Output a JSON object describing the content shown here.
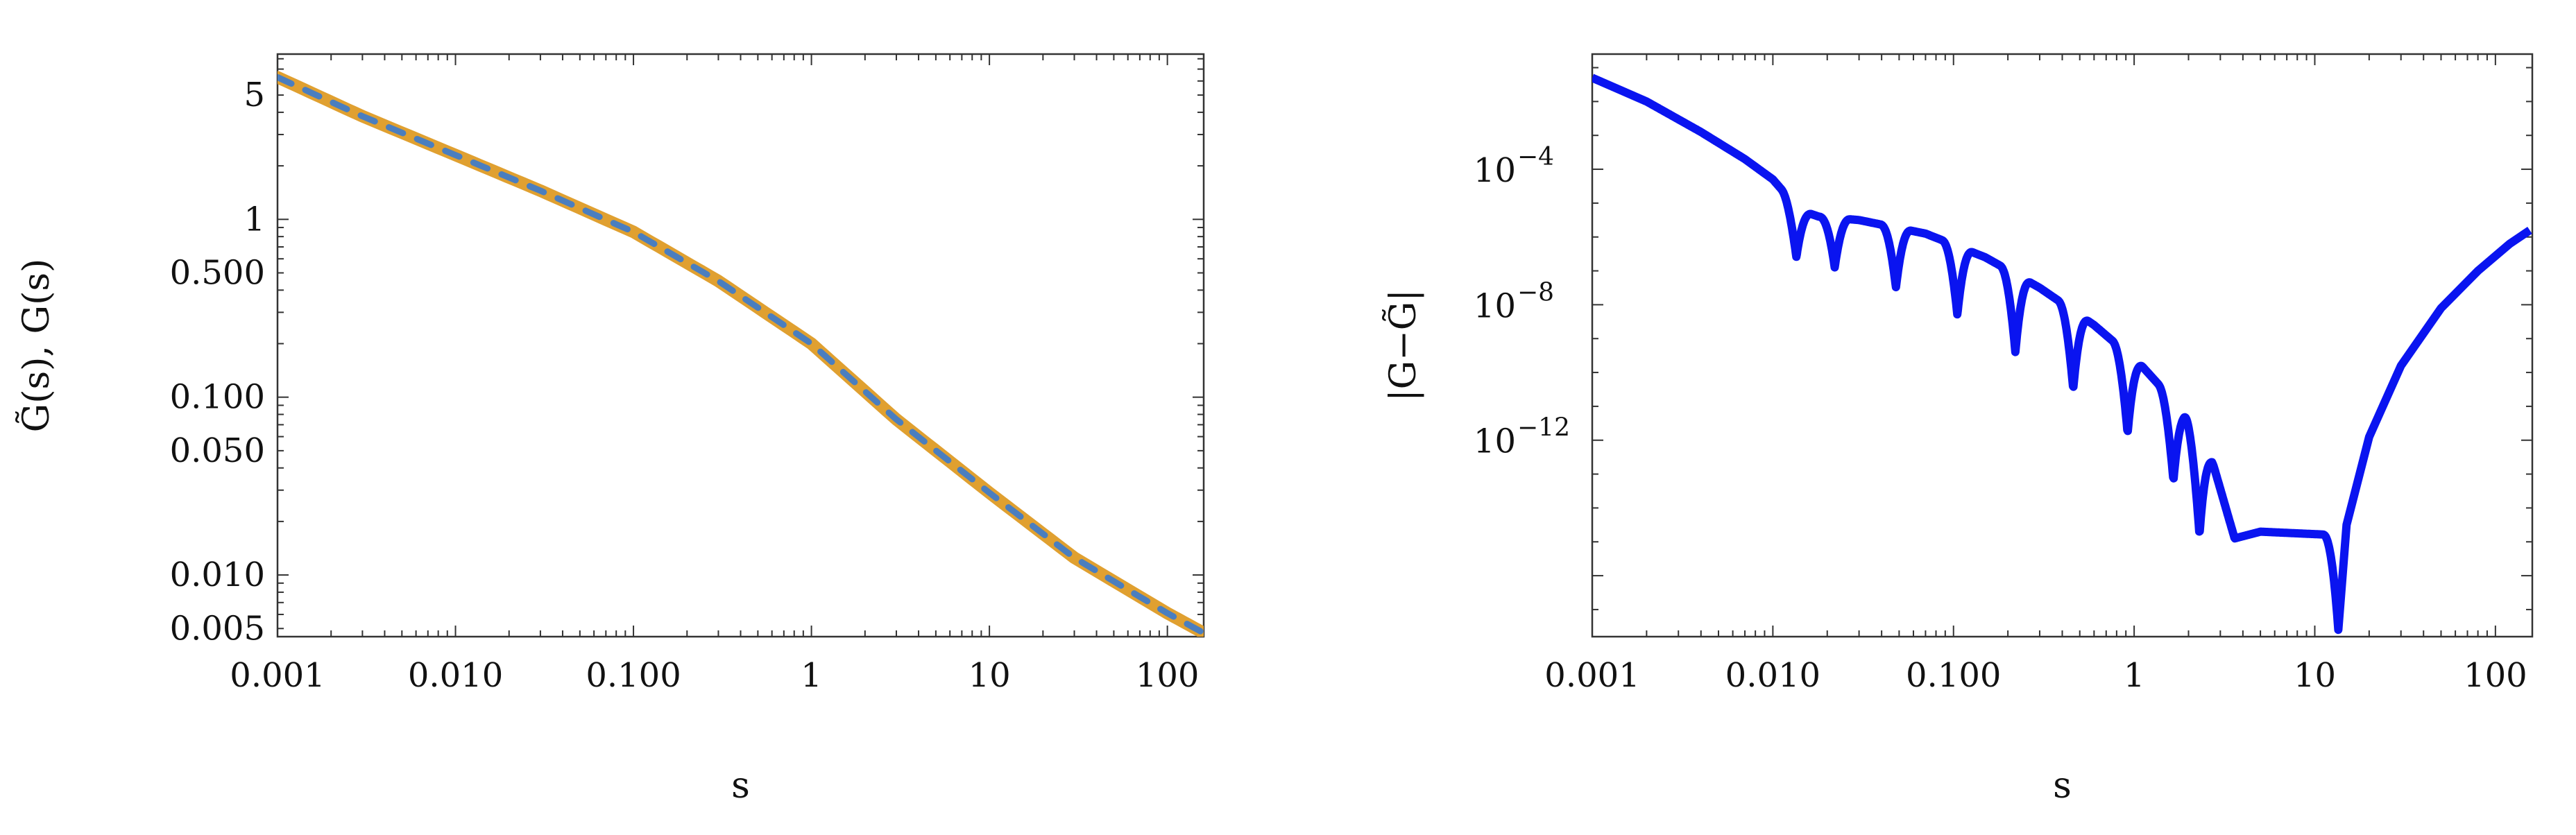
{
  "chart_data": [
    {
      "type": "line",
      "panel": "left",
      "scale": {
        "x": "log",
        "y": "log"
      },
      "xlabel": "s",
      "ylabel": "G̃(s), G(s)",
      "xlim": [
        0.001,
        160
      ],
      "ylim": [
        0.0045,
        8.5
      ],
      "x_ticks": [
        {
          "value": 0.001,
          "label": "0.001"
        },
        {
          "value": 0.01,
          "label": "0.010"
        },
        {
          "value": 0.1,
          "label": "0.100"
        },
        {
          "value": 1,
          "label": "1"
        },
        {
          "value": 10,
          "label": "10"
        },
        {
          "value": 100,
          "label": "100"
        }
      ],
      "y_ticks": [
        {
          "value": 5,
          "label": "5"
        },
        {
          "value": 1,
          "label": "1"
        },
        {
          "value": 0.5,
          "label": "0.500"
        },
        {
          "value": 0.1,
          "label": "0.100"
        },
        {
          "value": 0.05,
          "label": "0.050"
        },
        {
          "value": 0.01,
          "label": "0.010"
        },
        {
          "value": 0.005,
          "label": "0.005"
        }
      ],
      "series": [
        {
          "color": "#E0A030",
          "style": "solid",
          "x": [
            0.001,
            0.003,
            0.01,
            0.03,
            0.1,
            0.3,
            1,
            3,
            10,
            30,
            100,
            155
          ],
          "y": [
            6.3,
            3.8,
            2.3,
            1.45,
            0.85,
            0.45,
            0.2,
            0.075,
            0.029,
            0.0125,
            0.0061,
            0.0048
          ]
        },
        {
          "color": "#4A7EBF",
          "style": "dashed",
          "x": [
            0.001,
            0.003,
            0.01,
            0.03,
            0.1,
            0.3,
            1,
            3,
            10,
            30,
            100,
            155
          ],
          "y": [
            6.3,
            3.8,
            2.3,
            1.45,
            0.85,
            0.45,
            0.2,
            0.075,
            0.029,
            0.0125,
            0.0061,
            0.0048
          ]
        }
      ]
    },
    {
      "type": "line",
      "panel": "right",
      "scale": {
        "x": "log",
        "y": "log"
      },
      "xlabel": "s",
      "ylabel": "|G−G̃|",
      "xlim": [
        0.001,
        160
      ],
      "ylim_log10": [
        -17.8,
        -0.6
      ],
      "x_ticks": [
        {
          "value": 0.001,
          "label": "0.001"
        },
        {
          "value": 0.01,
          "label": "0.010"
        },
        {
          "value": 0.1,
          "label": "0.100"
        },
        {
          "value": 1,
          "label": "1"
        },
        {
          "value": 10,
          "label": "10"
        },
        {
          "value": 100,
          "label": "100"
        }
      ],
      "y_ticks": [
        {
          "exp": -4,
          "base": "10",
          "sup": "−4"
        },
        {
          "exp": -8,
          "base": "10",
          "sup": "−8"
        },
        {
          "exp": -12,
          "base": "10",
          "sup": "−12"
        }
      ],
      "series": [
        {
          "color": "#0A14F0",
          "style": "solid",
          "envelope": {
            "x": [
              0.001,
              0.002,
              0.004,
              0.007,
              0.01,
              0.014,
              0.018,
              0.03,
              0.07,
              0.15,
              0.3,
              0.6,
              1.1,
              1.9,
              2.7,
              3.6,
              5,
              8,
              13
            ],
            "log10y": [
              -1.3,
              -2.0,
              -2.9,
              -3.7,
              -4.3,
              -5.2,
              -5.4,
              -5.5,
              -5.9,
              -6.6,
              -7.5,
              -8.6,
              -9.8,
              -11.2,
              -12.6,
              -14.9,
              -14.7,
              -14.75,
              -14.8
            ]
          },
          "dips": [
            {
              "x": 0.0135,
              "log10y": -6.6
            },
            {
              "x": 0.022,
              "log10y": -6.9
            },
            {
              "x": 0.048,
              "log10y": -7.5
            },
            {
              "x": 0.105,
              "log10y": -8.3
            },
            {
              "x": 0.22,
              "log10y": -9.4
            },
            {
              "x": 0.46,
              "log10y": -10.5
            },
            {
              "x": 0.92,
              "log10y": -11.8
            },
            {
              "x": 1.65,
              "log10y": -13.2
            },
            {
              "x": 2.3,
              "log10y": -14.8
            },
            {
              "x": 13.5,
              "log10y": -17.6
            }
          ],
          "rise": {
            "x": [
              13.5,
              15,
              20,
              30,
              50,
              80,
              120,
              155
            ],
            "log10y": [
              -17.6,
              -14.5,
              -11.9,
              -9.8,
              -8.1,
              -7.0,
              -6.2,
              -5.8
            ]
          }
        }
      ]
    }
  ]
}
